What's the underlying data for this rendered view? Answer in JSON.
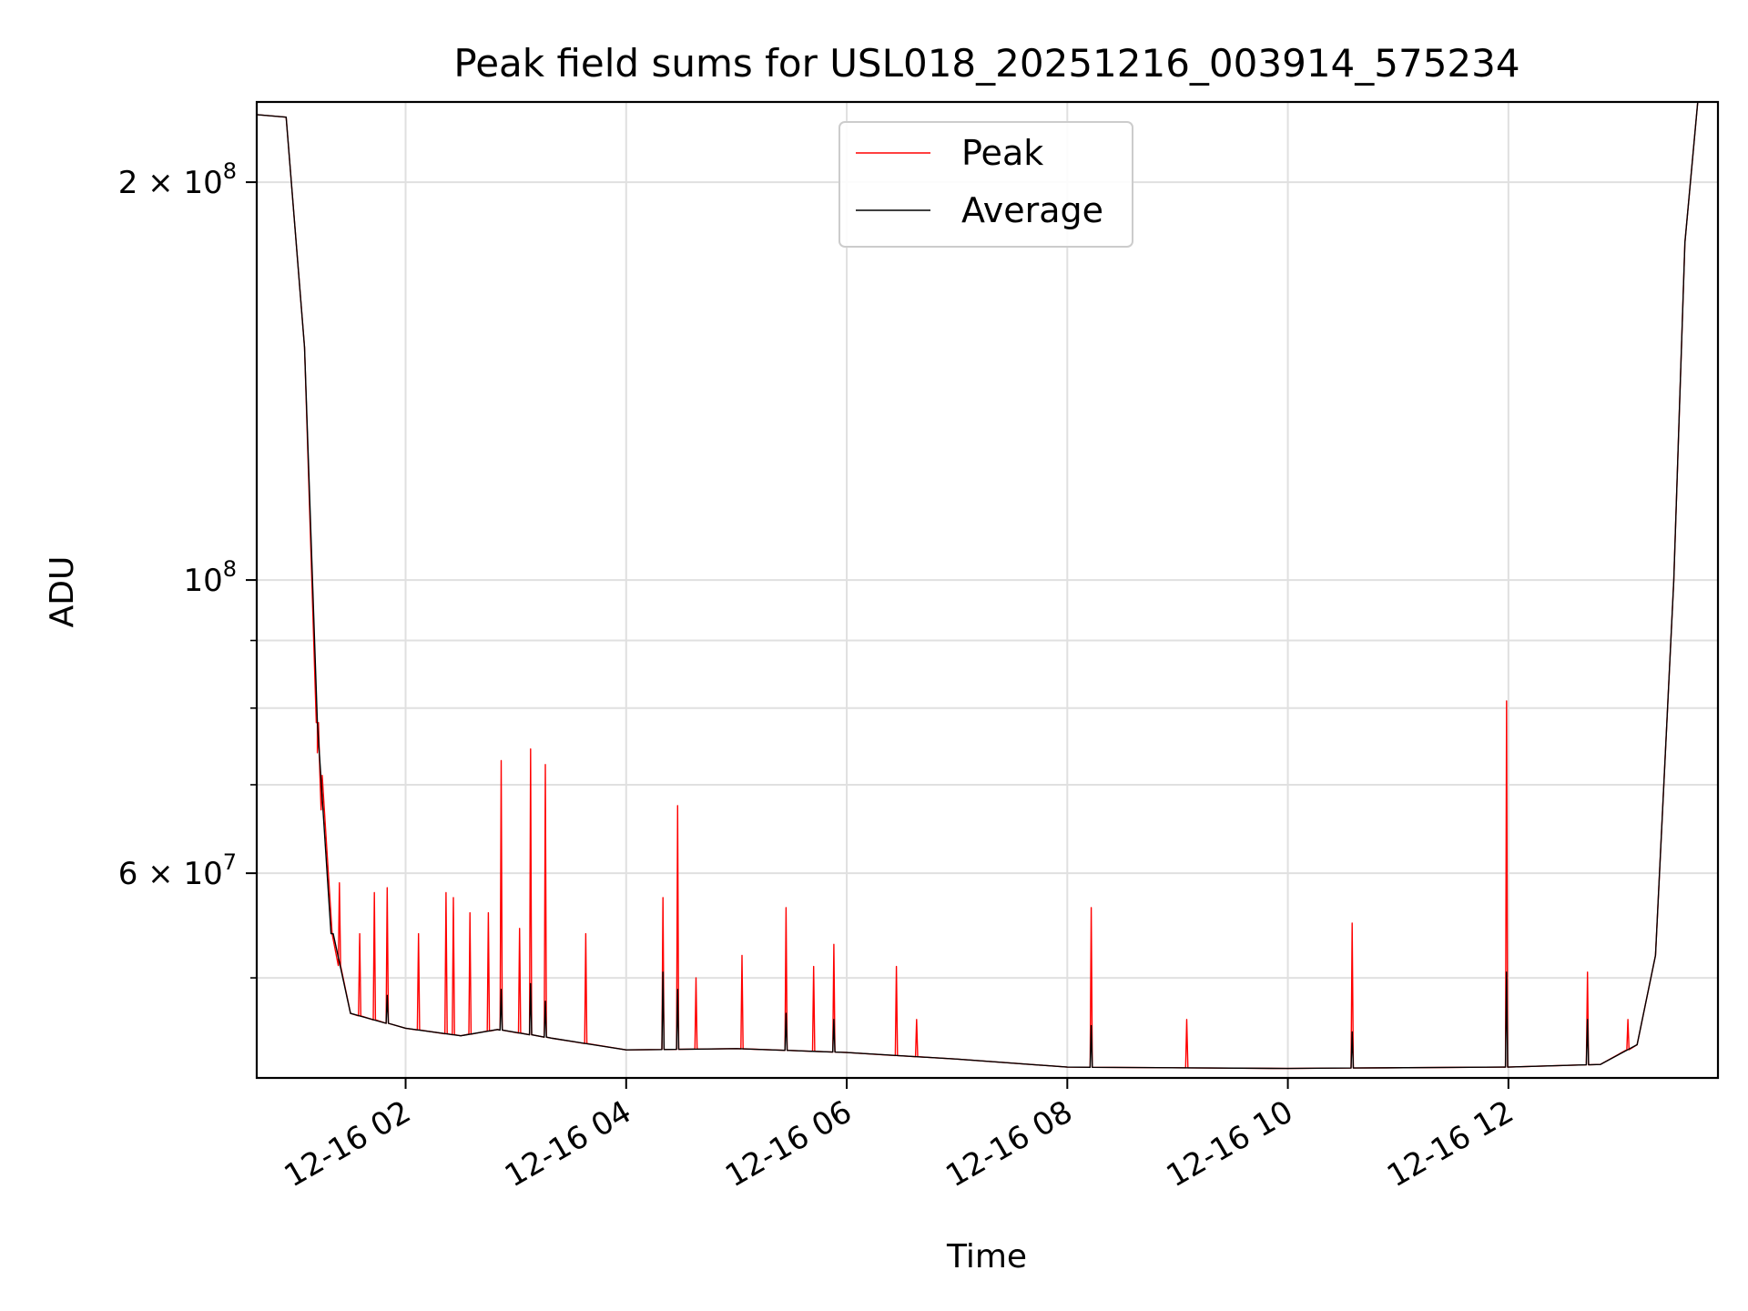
{
  "chart_data": {
    "type": "line",
    "title": "Peak field sums for USL018_20251216_003914_575234",
    "xlabel": "Time",
    "ylabel": "ADU",
    "x_type": "time",
    "xlim": [
      "2025-12-16 00:39",
      "2025-12-16 13:54"
    ],
    "ylim": [
      42000000,
      230000000
    ],
    "yscale": "log",
    "grid": true,
    "legend_position": "top-center",
    "x_ticks": [
      {
        "t": "2025-12-16 02:00",
        "label": "12-16 02"
      },
      {
        "t": "2025-12-16 04:00",
        "label": "12-16 04"
      },
      {
        "t": "2025-12-16 06:00",
        "label": "12-16 06"
      },
      {
        "t": "2025-12-16 08:00",
        "label": "12-16 08"
      },
      {
        "t": "2025-12-16 10:00",
        "label": "12-16 10"
      },
      {
        "t": "2025-12-16 12:00",
        "label": "12-16 12"
      }
    ],
    "y_major_ticks": [
      {
        "value": 60000000,
        "mantissa": "6",
        "exp": "7"
      },
      {
        "value": 100000000,
        "mantissa": "",
        "exp": "8"
      },
      {
        "value": 200000000,
        "mantissa": "2",
        "exp": "8"
      }
    ],
    "y_minor_ticks": [
      50000000,
      70000000,
      80000000,
      90000000
    ],
    "baseline": [
      [
        "2025-12-16 00:39",
        225000000
      ],
      [
        "2025-12-16 00:55",
        224000000
      ],
      [
        "2025-12-16 01:05",
        150000000
      ],
      [
        "2025-12-16 01:12",
        78000000
      ],
      [
        "2025-12-16 01:20",
        54000000
      ],
      [
        "2025-12-16 01:30",
        47000000
      ],
      [
        "2025-12-16 02:00",
        45800000
      ],
      [
        "2025-12-16 02:30",
        45200000
      ],
      [
        "2025-12-16 02:50",
        45700000
      ],
      [
        "2025-12-16 03:20",
        45000000
      ],
      [
        "2025-12-16 04:00",
        44100000
      ],
      [
        "2025-12-16 05:00",
        44200000
      ],
      [
        "2025-12-16 06:00",
        43900000
      ],
      [
        "2025-12-16 07:00",
        43400000
      ],
      [
        "2025-12-16 08:00",
        42800000
      ],
      [
        "2025-12-16 10:00",
        42700000
      ],
      [
        "2025-12-16 12:00",
        42800000
      ],
      [
        "2025-12-16 12:50",
        43000000
      ],
      [
        "2025-12-16 13:10",
        44500000
      ],
      [
        "2025-12-16 13:20",
        52000000
      ],
      [
        "2025-12-16 13:30",
        100000000
      ],
      [
        "2025-12-16 13:36",
        180000000
      ],
      [
        "2025-12-16 13:43",
        230000000
      ]
    ],
    "series": [
      {
        "name": "Peak",
        "color": "#ff0000",
        "spikes": [
          [
            "2025-12-16 01:12",
            74000000
          ],
          [
            "2025-12-16 01:14",
            67000000
          ],
          [
            "2025-12-16 01:24",
            59000000
          ],
          [
            "2025-12-16 01:35",
            54000000
          ],
          [
            "2025-12-16 01:43",
            58000000
          ],
          [
            "2025-12-16 01:50",
            58500000
          ],
          [
            "2025-12-16 02:07",
            54000000
          ],
          [
            "2025-12-16 02:22",
            58000000
          ],
          [
            "2025-12-16 02:26",
            57500000
          ],
          [
            "2025-12-16 02:35",
            56000000
          ],
          [
            "2025-12-16 02:45",
            56000000
          ],
          [
            "2025-12-16 02:52",
            73000000
          ],
          [
            "2025-12-16 03:02",
            54500000
          ],
          [
            "2025-12-16 03:08",
            74500000
          ],
          [
            "2025-12-16 03:16",
            72500000
          ],
          [
            "2025-12-16 03:38",
            54000000
          ],
          [
            "2025-12-16 04:20",
            57500000
          ],
          [
            "2025-12-16 04:28",
            67500000
          ],
          [
            "2025-12-16 04:38",
            50000000
          ],
          [
            "2025-12-16 05:03",
            52000000
          ],
          [
            "2025-12-16 05:27",
            56500000
          ],
          [
            "2025-12-16 05:42",
            51000000
          ],
          [
            "2025-12-16 05:53",
            53000000
          ],
          [
            "2025-12-16 06:27",
            51000000
          ],
          [
            "2025-12-16 06:38",
            46500000
          ],
          [
            "2025-12-16 08:13",
            56500000
          ],
          [
            "2025-12-16 09:05",
            46500000
          ],
          [
            "2025-12-16 10:35",
            55000000
          ],
          [
            "2025-12-16 11:59",
            81000000
          ],
          [
            "2025-12-16 12:43",
            50500000
          ],
          [
            "2025-12-16 13:05",
            46500000
          ]
        ]
      },
      {
        "name": "Average",
        "color": "#000000",
        "spikes": [
          [
            "2025-12-16 01:20",
            54000000
          ],
          [
            "2025-12-16 01:50",
            48500000
          ],
          [
            "2025-12-16 02:52",
            49000000
          ],
          [
            "2025-12-16 03:08",
            49500000
          ],
          [
            "2025-12-16 03:16",
            48000000
          ],
          [
            "2025-12-16 04:20",
            50500000
          ],
          [
            "2025-12-16 04:28",
            49000000
          ],
          [
            "2025-12-16 05:27",
            47000000
          ],
          [
            "2025-12-16 05:53",
            46500000
          ],
          [
            "2025-12-16 08:13",
            46000000
          ],
          [
            "2025-12-16 10:35",
            45500000
          ],
          [
            "2025-12-16 11:59",
            50500000
          ],
          [
            "2025-12-16 12:43",
            46500000
          ]
        ]
      }
    ]
  }
}
